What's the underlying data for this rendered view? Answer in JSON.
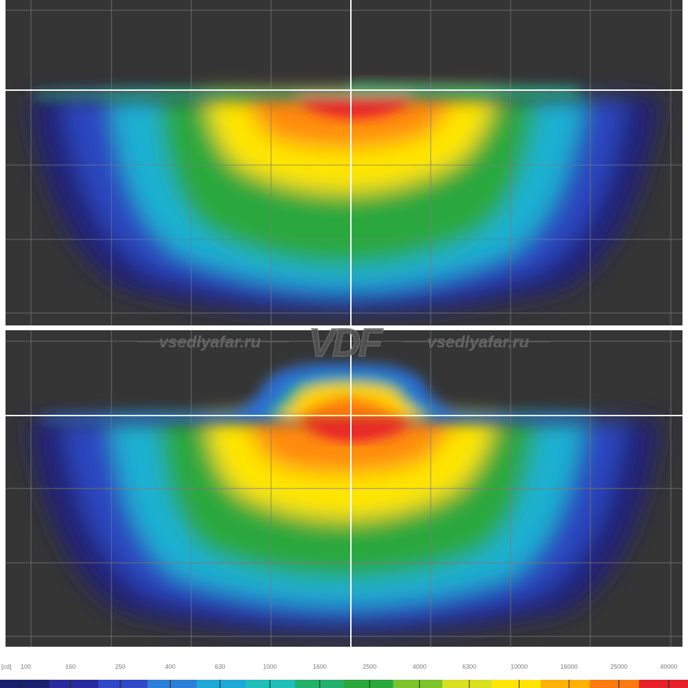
{
  "chart_data": [
    {
      "type": "heatmap",
      "title": "",
      "xlabel": "",
      "ylabel": "",
      "grid": true,
      "gridlines_x": 8,
      "gridlines_y": 3,
      "beam_shape": "flat-cutoff",
      "note": "Upper panel: beam pattern with flat horizontal cutoff, hot spot just below the cutoff line"
    },
    {
      "type": "heatmap",
      "title": "",
      "xlabel": "",
      "ylabel": "",
      "grid": true,
      "gridlines_x": 8,
      "gridlines_y": 3,
      "beam_shape": "raised-cutoff",
      "note": "Lower panel: beam pattern with raised central plateau above the cutoff line"
    }
  ],
  "color_scale": {
    "unit": "[cd]",
    "ticks": [
      "100",
      "160",
      "250",
      "400",
      "630",
      "1000",
      "1600",
      "2500",
      "4000",
      "6300",
      "10000",
      "16000",
      "25000",
      "40000"
    ],
    "colors": [
      "#1a1f6e",
      "#2a2aa0",
      "#2f48c6",
      "#2b7fd8",
      "#1ea8d8",
      "#21bfb8",
      "#22b06a",
      "#2aa83c",
      "#7cc42c",
      "#d9e020",
      "#ffe600",
      "#ffb000",
      "#ff7a10",
      "#e8202a"
    ]
  },
  "watermark": {
    "left_text": "vsedlyafar.ru",
    "right_text": "vsedlyafar.ru",
    "logo_text": "VDF"
  },
  "colors": {
    "panel_background": "#353535",
    "grid_line": "#7a7a7a",
    "crosshair": "#ffffff",
    "divider": "#ffffff"
  }
}
